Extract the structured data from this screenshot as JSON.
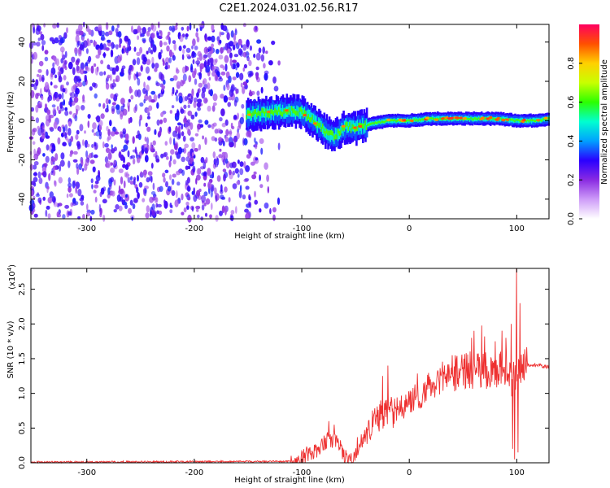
{
  "figure_title": "C2E1.2024.031.02.56.R17",
  "chart_data": [
    {
      "type": "heatmap",
      "xlabel": "Height of straight line (km)",
      "ylabel": "Frequency (Hz)",
      "xlim": [
        -352,
        130
      ],
      "ylim": [
        -50,
        49
      ],
      "xticks": [
        -300,
        -200,
        -100,
        0,
        100
      ],
      "yticks": [
        -40,
        -20,
        0,
        20,
        40
      ],
      "colorbar": {
        "label": "Normalized spectral amplitude",
        "range": [
          0.0,
          1.0
        ],
        "ticks": [
          "0.0",
          "0.2",
          "0.4",
          "0.6",
          "0.8"
        ],
        "colors": [
          "#ffffff",
          "#ce9cf8",
          "#8a2be2",
          "#2a00ff",
          "#00a0ff",
          "#00ffd0",
          "#2cff00",
          "#c8ff00",
          "#ffd000",
          "#ff5000",
          "#ff0060"
        ]
      },
      "ridge": {
        "x": [
          -150,
          -130,
          -110,
          -100,
          -90,
          -80,
          -70,
          -60,
          -50,
          -40,
          -30,
          -20,
          0,
          20,
          40,
          60,
          80,
          100,
          120,
          130
        ],
        "y": [
          3,
          4,
          5,
          4,
          0,
          -5,
          -8,
          -3,
          -4,
          -2,
          -1,
          0,
          0,
          1,
          1,
          1,
          1,
          0,
          0,
          1
        ]
      }
    },
    {
      "type": "line",
      "xlabel": "Height of straight line (km)",
      "ylabel": "SNR (10 * v/v)",
      "yscale_label": "(x10",
      "yscale_exp": "4",
      "xlim": [
        -352,
        130
      ],
      "ylim": [
        0,
        2.8
      ],
      "xticks": [
        -300,
        -200,
        -100,
        0,
        100
      ],
      "yticks": [
        "0.0",
        "0.5",
        "1.0",
        "1.5",
        "2.0",
        "2.5"
      ],
      "color": "#ee3030",
      "envelope": {
        "x": [
          -352,
          -110,
          -100,
          -85,
          -75,
          -65,
          -60,
          -52,
          -45,
          -40,
          -30,
          -20,
          -10,
          0,
          10,
          20,
          30,
          40,
          50,
          60,
          70,
          80,
          85,
          90,
          95,
          100,
          105,
          110,
          120,
          130
        ],
        "y": [
          0.01,
          0.02,
          0.08,
          0.2,
          0.35,
          0.28,
          0.07,
          0.04,
          0.25,
          0.45,
          0.65,
          0.75,
          0.8,
          0.88,
          0.98,
          1.1,
          1.22,
          1.3,
          1.32,
          1.34,
          1.33,
          1.33,
          1.3,
          1.32,
          1.2,
          1.35,
          1.42,
          1.4,
          1.4,
          1.38
        ]
      },
      "spikes": {
        "x": [
          -75,
          -70,
          -25,
          -20,
          40,
          58,
          60,
          70,
          80,
          85,
          90,
          95,
          96,
          98,
          100,
          101,
          103
        ],
        "y": [
          0.6,
          0.55,
          1.25,
          1.4,
          1.55,
          1.8,
          1.9,
          1.82,
          1.75,
          1.6,
          1.8,
          2.0,
          0.2,
          0.05,
          2.8,
          0.15,
          2.3
        ]
      }
    }
  ]
}
